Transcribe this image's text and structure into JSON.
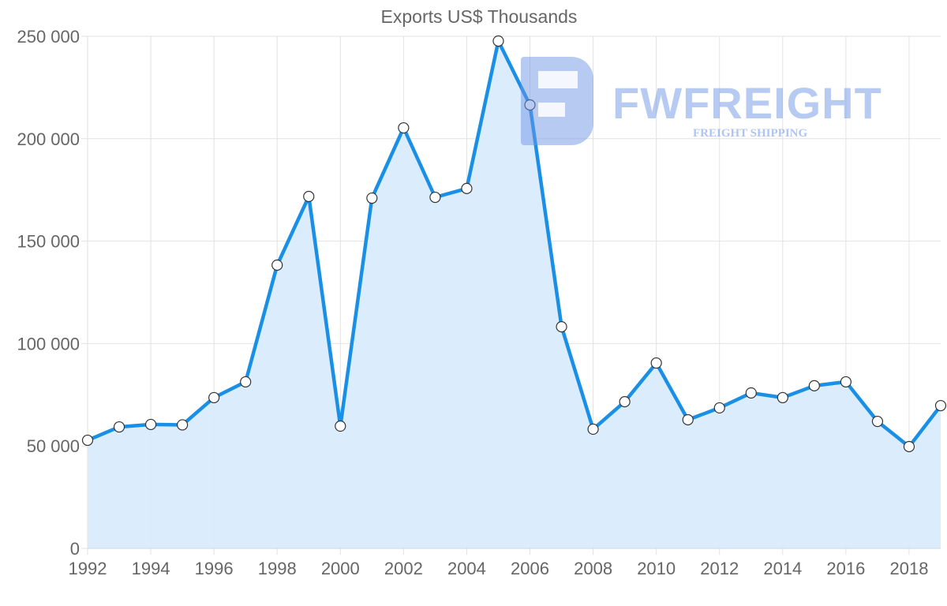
{
  "chart": {
    "title": "Exports US$ Thousands",
    "y_ticks": [
      "0",
      "50 000",
      "100 000",
      "150 000",
      "200 000",
      "250 000"
    ],
    "x_ticks": [
      "1992",
      "1994",
      "1996",
      "1998",
      "2000",
      "2002",
      "2004",
      "2006",
      "2008",
      "2010",
      "2012",
      "2014",
      "2016",
      "2018"
    ],
    "colors": {
      "line": "#1a8fe6",
      "fill": "#d9ecfd",
      "grid": "#e2e2e2",
      "text": "#666666"
    }
  },
  "watermark": {
    "brand": "FWFREIGHT",
    "tagline": "FREIGHT SHIPPING"
  },
  "chart_data": {
    "type": "area",
    "title": "Exports US$ Thousands",
    "xlabel": "",
    "ylabel": "",
    "x": [
      1992,
      1993,
      1994,
      1995,
      1996,
      1997,
      1998,
      1999,
      2000,
      2001,
      2002,
      2003,
      2004,
      2005,
      2006,
      2007,
      2008,
      2009,
      2010,
      2011,
      2012,
      2013,
      2014,
      2015,
      2016,
      2017,
      2018,
      2019
    ],
    "series": [
      {
        "name": "Exports US$ Thousands",
        "values": [
          52800,
          59300,
          60500,
          60300,
          73600,
          81300,
          138300,
          171800,
          59700,
          171000,
          205300,
          171400,
          175700,
          247700,
          216500,
          108200,
          58200,
          71600,
          90500,
          62800,
          68600,
          75900,
          73600,
          79400,
          81300,
          62000,
          49700,
          69700
        ]
      }
    ],
    "ylim": [
      0,
      250000
    ],
    "xlim": [
      1992,
      2019
    ],
    "y_ticks": [
      0,
      50000,
      100000,
      150000,
      200000,
      250000
    ],
    "x_ticks": [
      1992,
      1994,
      1996,
      1998,
      2000,
      2002,
      2004,
      2006,
      2008,
      2010,
      2012,
      2014,
      2016,
      2018
    ],
    "grid": true,
    "legend": "none"
  }
}
